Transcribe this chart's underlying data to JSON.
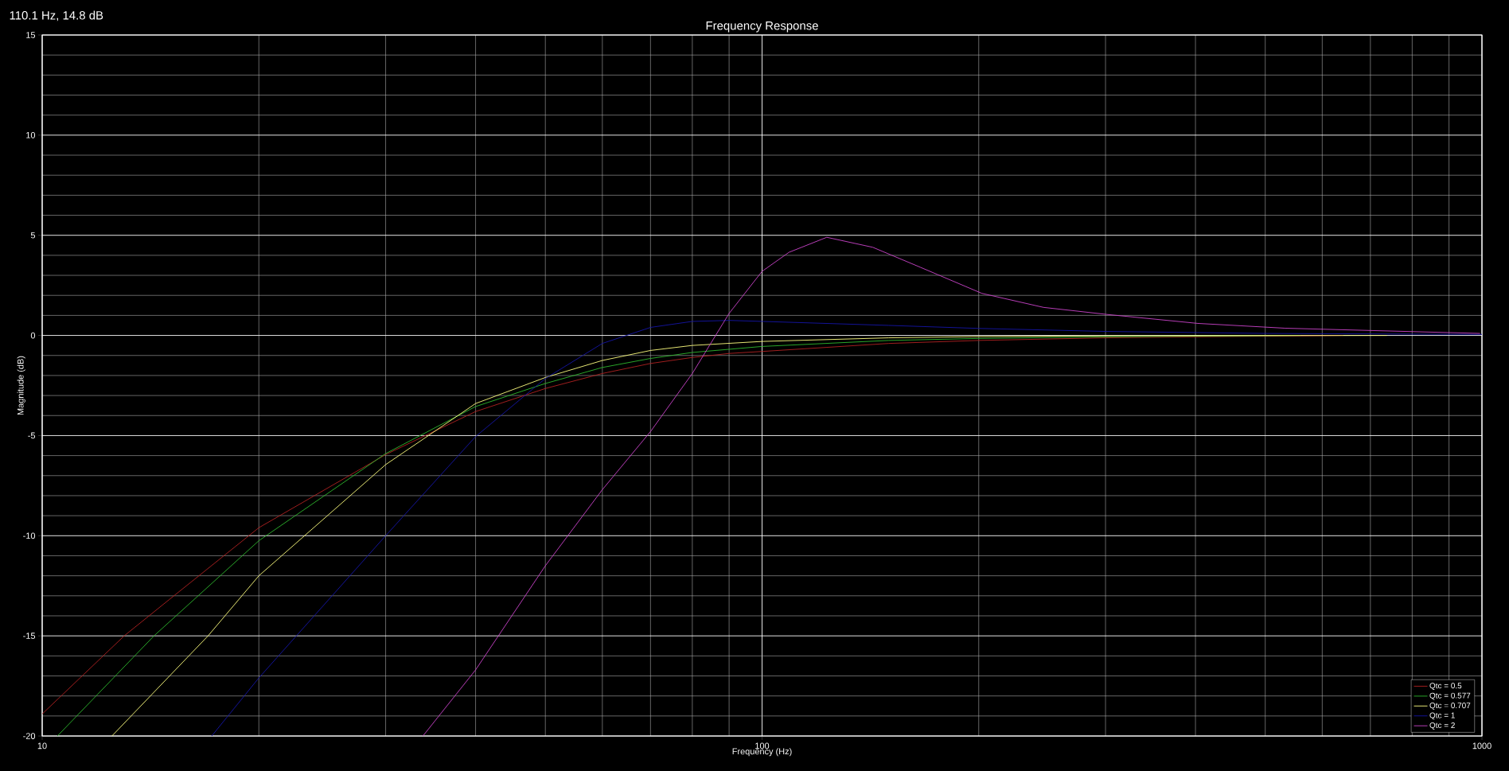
{
  "chart_data": {
    "type": "line",
    "title": "Frequency Response",
    "xlabel": "Frequency (Hz)",
    "ylabel": "Magnitude (dB)",
    "annotations": [
      "110.1 Hz, 14.8 dB"
    ],
    "log": "x",
    "grid": true,
    "legend": "bottom right",
    "xlim": [
      10,
      1000
    ],
    "ylim": [
      -20,
      15
    ],
    "xticks": [
      10,
      {
        "value": 20,
        "label": null
      },
      {
        "value": 30,
        "label": null
      },
      {
        "value": 40,
        "label": null
      },
      {
        "value": 50,
        "label": null
      },
      {
        "value": 60,
        "label": null
      },
      {
        "value": 70,
        "label": null
      },
      {
        "value": 80,
        "label": null
      },
      {
        "value": 90,
        "label": null
      },
      100,
      {
        "value": 200,
        "label": null
      },
      {
        "value": 300,
        "label": null
      },
      {
        "value": 400,
        "label": null
      },
      {
        "value": 500,
        "label": null
      },
      {
        "value": 600,
        "label": null
      },
      {
        "value": 700,
        "label": null
      },
      {
        "value": 800,
        "label": null
      },
      {
        "value": 900,
        "label": null
      },
      1000
    ],
    "yticks": [
      -20,
      {
        "value": -19,
        "label": null
      },
      {
        "value": -18,
        "label": null
      },
      {
        "value": -17,
        "label": null
      },
      {
        "value": -16,
        "label": null
      },
      -15,
      {
        "value": -14,
        "label": null
      },
      {
        "value": -13,
        "label": null
      },
      {
        "value": -12,
        "label": null
      },
      {
        "value": -11,
        "label": null
      },
      -10,
      {
        "value": -9,
        "label": null
      },
      {
        "value": -8,
        "label": null
      },
      {
        "value": -7,
        "label": null
      },
      {
        "value": -6,
        "label": null
      },
      -5,
      {
        "value": -4,
        "label": null
      },
      {
        "value": -3,
        "label": null
      },
      {
        "value": -2,
        "label": null
      },
      {
        "value": -1,
        "label": null
      },
      0,
      {
        "value": 1,
        "label": null
      },
      {
        "value": 2,
        "label": null
      },
      {
        "value": 3,
        "label": null
      },
      {
        "value": 4,
        "label": null
      },
      5,
      {
        "value": 6,
        "label": null
      },
      {
        "value": 7,
        "label": null
      },
      {
        "value": 8,
        "label": null
      },
      {
        "value": 9,
        "label": null
      },
      10,
      {
        "value": 11,
        "label": null
      },
      {
        "value": 12,
        "label": null
      },
      {
        "value": 13,
        "label": null
      },
      {
        "value": 14,
        "label": null
      },
      15
    ],
    "series": [
      {
        "name": "Qtc = 0.5",
        "color": "#b22222",
        "x": [
          10,
          13,
          15,
          20,
          30,
          40,
          50,
          60,
          70,
          80,
          90,
          100,
          150,
          200,
          300,
          400,
          642
        ],
        "values": [
          -18.9,
          -15,
          -13.2,
          -9.6,
          -5.95,
          -3.8,
          -2.65,
          -1.9,
          -1.4,
          -1.1,
          -0.9,
          -0.8,
          -0.4,
          -0.25,
          -0.12,
          -0.07,
          0
        ]
      },
      {
        "name": "Qtc = 0.577",
        "color": "#2eb82e",
        "x": [
          10.5,
          14.3,
          20,
          30,
          40,
          50,
          60,
          70,
          80,
          100,
          150,
          200,
          300,
          560
        ],
        "values": [
          -20,
          -15,
          -10.25,
          -5.9,
          -3.55,
          -2.4,
          -1.6,
          -1.15,
          -0.85,
          -0.55,
          -0.25,
          -0.15,
          -0.07,
          0
        ]
      },
      {
        "name": "Qtc = 0.707",
        "color": "#ffff80",
        "x": [
          12.5,
          17,
          20,
          30,
          40,
          50,
          60,
          70,
          80,
          100,
          150,
          200,
          300,
          738
        ],
        "values": [
          -20,
          -15,
          -12,
          -6.45,
          -3.4,
          -2.1,
          -1.25,
          -0.75,
          -0.5,
          -0.3,
          -0.12,
          -0.06,
          -0.02,
          0
        ]
      },
      {
        "name": "Qtc = 1",
        "color": "#1515a8",
        "x": [
          17.2,
          20,
          30,
          40,
          50,
          60,
          70,
          80,
          90,
          100,
          150,
          200,
          300,
          500,
          1000
        ],
        "values": [
          -20,
          -17.1,
          -10,
          -5.05,
          -2.15,
          -0.4,
          0.4,
          0.7,
          0.75,
          0.7,
          0.5,
          0.35,
          0.2,
          0.1,
          0.05
        ]
      },
      {
        "name": "Qtc = 2",
        "color": "#cc44cc",
        "x": [
          33.8,
          40,
          50,
          60,
          70,
          80,
          90,
          100,
          109,
          123,
          142.5,
          166,
          202,
          246,
          301,
          403,
          533,
          994
        ],
        "values": [
          -20,
          -16.7,
          -11.5,
          -7.7,
          -4.8,
          -1.9,
          1.1,
          3.2,
          4.15,
          4.9,
          4.4,
          3.4,
          2.1,
          1.4,
          1.05,
          0.6,
          0.36,
          0.1
        ]
      }
    ]
  }
}
